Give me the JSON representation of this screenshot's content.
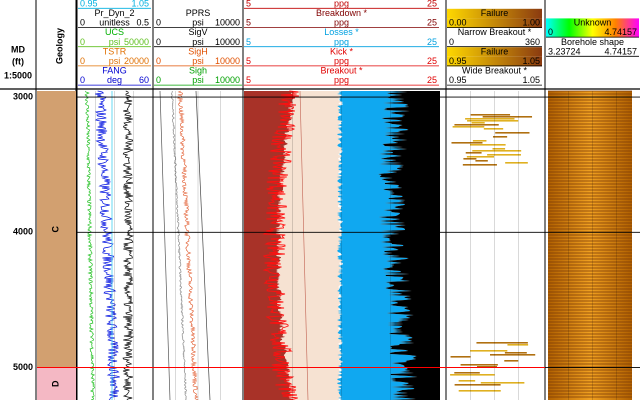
{
  "depth_axis": {
    "label": "MD",
    "unit": "(ft)",
    "scale": "1:5000",
    "range": [
      2955,
      5240
    ],
    "ticks": [
      3000,
      4000,
      5000
    ]
  },
  "geology": {
    "title": "Geology",
    "zones": [
      {
        "label": "C",
        "top": 2955,
        "base": 5000,
        "color": "#d2a070"
      },
      {
        "label": "D",
        "top": 5000,
        "base": 5240,
        "color": "#f4b8c4"
      }
    ]
  },
  "tracks": [
    {
      "rows": [
        {
          "scale": [
            "0.95",
            "1.05"
          ],
          "color": "#00b0e0"
        },
        {
          "title": "Pr_Dyn_2",
          "color": "#000000"
        },
        {
          "scale": [
            "0",
            "unitless",
            "0.5"
          ],
          "color": "#000000"
        },
        {
          "title": "UCS",
          "color": "#00b000"
        },
        {
          "scale": [
            "0",
            "psi",
            "50000"
          ],
          "color": "#60c020"
        },
        {
          "title": "TSTR",
          "color": "#e07000"
        },
        {
          "scale": [
            "0",
            "psi",
            "20000"
          ],
          "color": "#e07000"
        },
        {
          "title": "FANG",
          "color": "#0000d0"
        },
        {
          "scale": [
            "0",
            "deg",
            "60"
          ],
          "color": "#0000d0"
        }
      ]
    },
    {
      "rows": [
        {
          "title": "PPRS",
          "color": "#000000"
        },
        {
          "scale": [
            "0",
            "psi",
            "10000"
          ],
          "color": "#000000"
        },
        {
          "title": "SigV",
          "color": "#000000"
        },
        {
          "scale": [
            "0",
            "psi",
            "10000"
          ],
          "color": "#000000"
        },
        {
          "title": "SigH",
          "color": "#e05000"
        },
        {
          "scale": [
            "0",
            "psi",
            "10000"
          ],
          "color": "#e05000"
        },
        {
          "title": "Sigh",
          "color": "#00a000"
        },
        {
          "scale": [
            "0",
            "psi",
            "10000"
          ],
          "color": "#00a000"
        }
      ]
    },
    {
      "rows": [
        {
          "scale": [
            "5",
            "ppg",
            "25"
          ],
          "color": "#c00000"
        },
        {
          "title": "Breakdown *",
          "color": "#800000"
        },
        {
          "scale": [
            "5",
            "ppg",
            "25"
          ],
          "color": "#800000"
        },
        {
          "title": "Losses *",
          "color": "#00a0e0"
        },
        {
          "scale": [
            "5",
            "ppg",
            "25"
          ],
          "color": "#00a0e0"
        },
        {
          "title": "Kick *",
          "color": "#e00000"
        },
        {
          "scale": [
            "5",
            "ppg",
            "25"
          ],
          "color": "#e00000"
        },
        {
          "title": "Breakout *",
          "color": "#e00000"
        },
        {
          "scale": [
            "5",
            "ppg",
            "25"
          ],
          "color": "#e00000"
        }
      ]
    },
    {
      "rows": [
        {
          "title": "Failure",
          "color": "#000000",
          "fill": "failure"
        },
        {
          "scale": [
            "0.00",
            "1.00"
          ],
          "color": "#000000",
          "fill": "failure"
        },
        {
          "title": "Narrow Breakout *",
          "color": "#000000"
        },
        {
          "scale": [
            "0",
            "360"
          ],
          "color": "#000000"
        },
        {
          "title": "Failure",
          "color": "#000000",
          "fill": "failure"
        },
        {
          "scale": [
            "0.95",
            "1.05"
          ],
          "color": "#000000",
          "fill": "failure"
        },
        {
          "title": "Wide Breakout *",
          "color": "#000000"
        },
        {
          "scale": [
            "0.95",
            "1.05"
          ],
          "color": "#000000"
        }
      ]
    },
    {
      "rows": [
        {
          "title": "Unknown",
          "color": "#000000",
          "fill": "rainbow"
        },
        {
          "scale": [
            "0",
            "4.74157"
          ],
          "color": "#000000",
          "fill": "rainbow"
        },
        {
          "title": "Borehole shape",
          "color": "#000000"
        },
        {
          "scale": [
            "3.23724",
            "4.74157"
          ],
          "color": "#000000"
        }
      ]
    }
  ]
}
